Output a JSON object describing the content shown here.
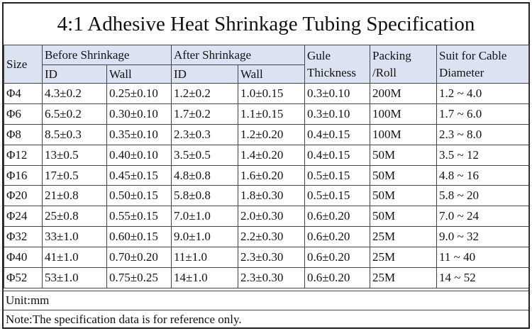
{
  "title": "4:1 Adhesive Heat Shrinkage Tubing Specification",
  "headers": {
    "size": "Size",
    "before": "Before Shrinkage",
    "after": "After Shrinkage",
    "id": "ID",
    "wall": "Wall",
    "glue_line1": "Gule",
    "glue_line2": "Thickness",
    "packing_line1": "Packing",
    "packing_line2": "/Roll",
    "suit_line1": "Suit for Cable",
    "suit_line2": "Diameter"
  },
  "rows": [
    {
      "size": "Φ4",
      "before_id": "4.3±0.2",
      "before_wall": "0.25±0.10",
      "after_id": "1.2±0.2",
      "after_wall": "1.0±0.15",
      "glue": "0.3±0.10",
      "packing": "200M",
      "suit": "1.2 ~ 4.0"
    },
    {
      "size": "Φ6",
      "before_id": "6.5±0.2",
      "before_wall": "0.30±0.10",
      "after_id": "1.7±0.2",
      "after_wall": "1.1±0.15",
      "glue": "0.3±0.10",
      "packing": "100M",
      "suit": "1.7 ~ 6.0"
    },
    {
      "size": "Φ8",
      "before_id": "8.5±0.3",
      "before_wall": "0.35±0.10",
      "after_id": "2.3±0.3",
      "after_wall": "1.2±0.20",
      "glue": "0.4±0.15",
      "packing": "100M",
      "suit": "2.3 ~ 8.0"
    },
    {
      "size": "Φ12",
      "before_id": "13±0.5",
      "before_wall": "0.40±0.10",
      "after_id": "3.5±0.5",
      "after_wall": "1.4±0.20",
      "glue": "0.4±0.15",
      "packing": "50M",
      "suit": "3.5 ~ 12"
    },
    {
      "size": "Φ16",
      "before_id": "17±0.5",
      "before_wall": "0.45±0.15",
      "after_id": "4.8±0.8",
      "after_wall": "1.6±0.20",
      "glue": "0.5±0.15",
      "packing": "50M",
      "suit": "4.8 ~ 16"
    },
    {
      "size": "Φ20",
      "before_id": "21±0.8",
      "before_wall": "0.50±0.15",
      "after_id": "5.8±0.8",
      "after_wall": "1.8±0.30",
      "glue": "0.5±0.15",
      "packing": "50M",
      "suit": "5.8 ~ 20"
    },
    {
      "size": "Φ24",
      "before_id": "25±0.8",
      "before_wall": "0.55±0.15",
      "after_id": "7.0±1.0",
      "after_wall": "2.0±0.30",
      "glue": "0.6±0.20",
      "packing": "50M",
      "suit": "7.0 ~ 24"
    },
    {
      "size": "Φ32",
      "before_id": "33±1.0",
      "before_wall": "0.60±0.15",
      "after_id": "9.0±1.0",
      "after_wall": "2.2±0.30",
      "glue": "0.6±0.20",
      "packing": "25M",
      "suit": "9.0 ~ 32"
    },
    {
      "size": "Φ40",
      "before_id": "41±1.0",
      "before_wall": "0.70±0.20",
      "after_id": "11±1.0",
      "after_wall": "2.3±0.30",
      "glue": "0.6±0.20",
      "packing": "25M",
      "suit": "11 ~ 40"
    },
    {
      "size": "Φ52",
      "before_id": "53±1.0",
      "before_wall": "0.75±0.25",
      "after_id": "14±1.0",
      "after_wall": "2.3±0.30",
      "glue": "0.6±0.20",
      "packing": "25M",
      "suit": "14 ~ 52"
    }
  ],
  "unit": "Unit:mm",
  "note": "Note:The specification data is for reference only.",
  "colors": {
    "header_bg": "#dbe3f2",
    "border": "#444444"
  }
}
